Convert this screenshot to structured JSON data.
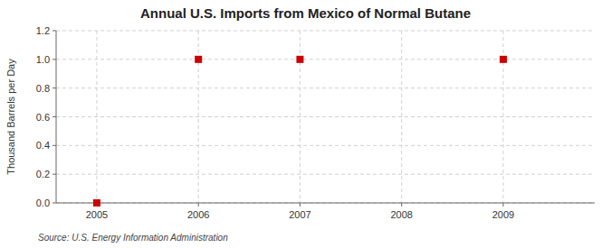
{
  "chart_data": {
    "type": "scatter",
    "title": "Annual U.S. Imports from Mexico of Normal Butane",
    "ylabel": "Thousand Barrels per Day",
    "source": "Source: U.S. Energy Information Administration",
    "x": [
      2005,
      2006,
      2007,
      2009
    ],
    "values": [
      0.0,
      1.0,
      1.0,
      1.0
    ],
    "color": "#CC0000",
    "marker": "square",
    "xlim": [
      2004.6,
      2009.9
    ],
    "ylim": [
      0.0,
      1.2
    ],
    "xticks": [
      2005,
      2006,
      2007,
      2008,
      2009
    ],
    "yticks": [
      {
        "value": 0.0,
        "label": "0.0"
      },
      0.2,
      0.4,
      0.6,
      0.8,
      {
        "value": 1.0,
        "label": "1.0"
      },
      1.2
    ],
    "grid": true
  }
}
